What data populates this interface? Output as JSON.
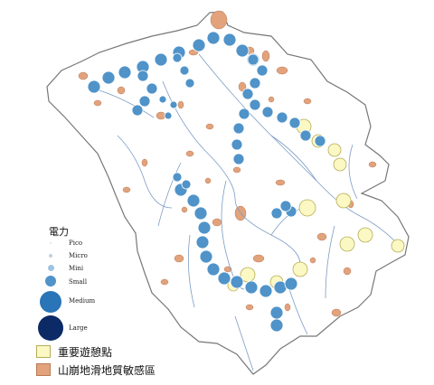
{
  "legend": {
    "title": "電力",
    "power_classes": [
      {
        "label": "Pico",
        "color": "#d8dee6"
      },
      {
        "label": "Micro",
        "color": "#c2cfdc"
      },
      {
        "label": "Mini",
        "color": "#9ec3e0"
      },
      {
        "label": "Small",
        "color": "#4f93c9"
      },
      {
        "label": "Medium",
        "color": "#2a74b8"
      },
      {
        "label": "Large",
        "color": "#0c2a66"
      }
    ],
    "tourist_spot": {
      "label": "重要遊憩點",
      "color": "#fbf8c4",
      "stroke": "#b5ad55"
    },
    "landslide_area": {
      "label": "山崩地滑地質敏感區",
      "color": "#e2a37c",
      "stroke": "#b87a55"
    }
  },
  "colors": {
    "boundary": "#777777",
    "river": "#7b9cc4",
    "site_fill": "#4f93c9",
    "site_stroke": "#ffffff"
  }
}
